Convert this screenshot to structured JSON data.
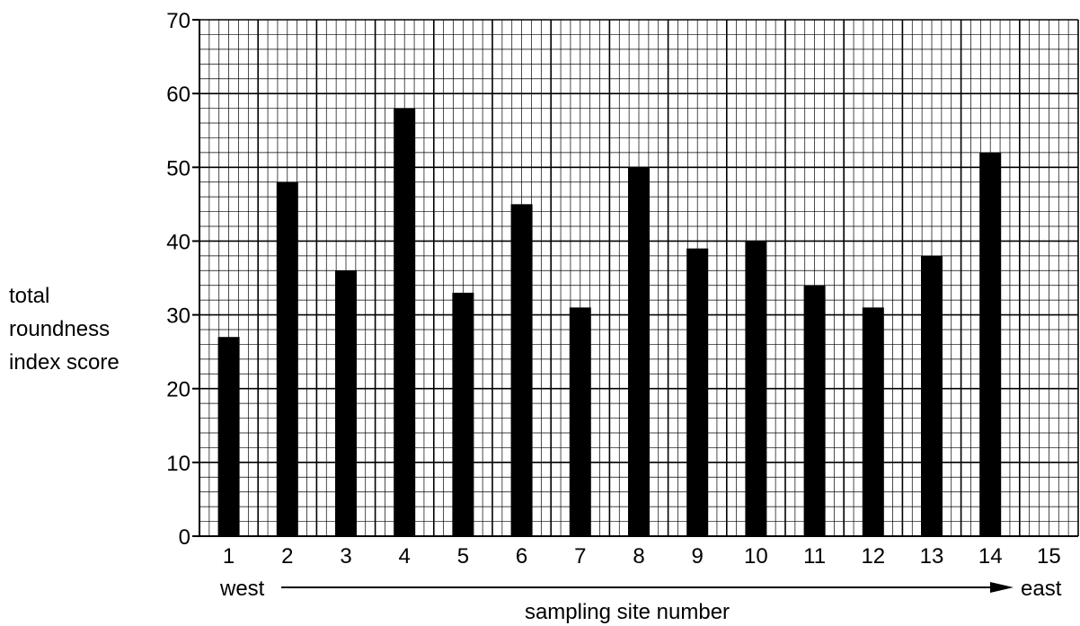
{
  "chart_data": {
    "type": "bar",
    "categories": [
      "1",
      "2",
      "3",
      "4",
      "5",
      "6",
      "7",
      "8",
      "9",
      "10",
      "11",
      "12",
      "13",
      "14",
      "15"
    ],
    "values": [
      27,
      48,
      36,
      58,
      33,
      45,
      31,
      50,
      39,
      40,
      34,
      31,
      38,
      52,
      null
    ],
    "title": "",
    "xlabel": "sampling site number",
    "ylabel_lines": [
      "total",
      "roundness",
      "index score"
    ],
    "ylim": [
      0,
      70
    ],
    "y_ticks": [
      "0",
      "10",
      "20",
      "30",
      "40",
      "50",
      "60",
      "70"
    ],
    "direction_start": "west",
    "direction_end": "east",
    "grid": true,
    "bar_color": "#000000",
    "grid_color": "#000000"
  }
}
